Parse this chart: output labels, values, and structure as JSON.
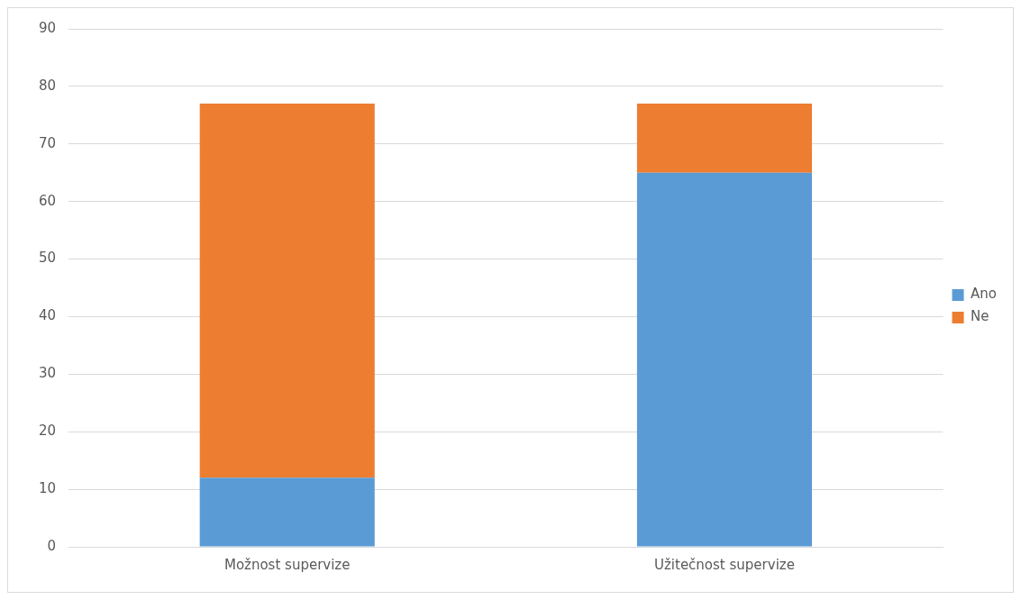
{
  "chart_data": {
    "type": "bar",
    "stacked": true,
    "categories": [
      "Možnost supervize",
      "Užitečnost supervize"
    ],
    "series": [
      {
        "name": "Ano",
        "color": "#5b9bd5",
        "values": [
          12,
          65
        ]
      },
      {
        "name": "Ne",
        "color": "#ed7d31",
        "values": [
          65,
          12
        ]
      }
    ],
    "ylim": [
      0,
      90
    ],
    "yticks": [
      0,
      10,
      20,
      30,
      40,
      50,
      60,
      70,
      80,
      90
    ],
    "grid": "y",
    "legend": "right"
  }
}
